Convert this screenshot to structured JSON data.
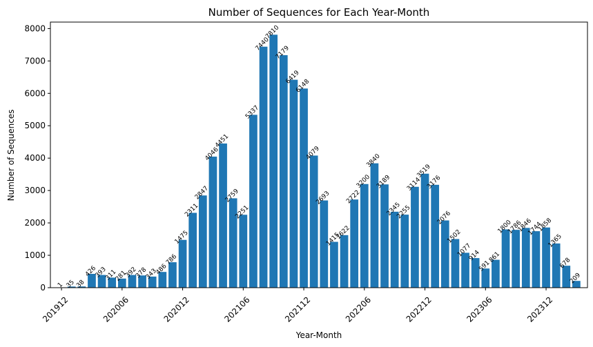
{
  "chart_data": {
    "type": "bar",
    "title": "Number of Sequences for Each Year-Month",
    "xlabel": "Year-Month",
    "ylabel": "Number of Sequences",
    "ylim": [
      0,
      8200
    ],
    "yticks": [
      0,
      1000,
      2000,
      3000,
      4000,
      5000,
      6000,
      7000,
      8000
    ],
    "xtick_labels": [
      "201912",
      "202006",
      "202012",
      "202106",
      "202112",
      "202206",
      "202212",
      "202306",
      "202312"
    ],
    "xtick_positions": [
      0,
      6,
      12,
      18,
      24,
      30,
      36,
      42,
      48
    ],
    "bar_color": "#1f77b4",
    "grid": false,
    "categories": [
      "201912",
      "202001",
      "202002",
      "202003",
      "202004",
      "202005",
      "202006",
      "202007",
      "202008",
      "202009",
      "202010",
      "202011",
      "202012",
      "202101",
      "202102",
      "202103",
      "202104",
      "202105",
      "202106",
      "202107",
      "202108",
      "202109",
      "202110",
      "202111",
      "202112",
      "202201",
      "202202",
      "202203",
      "202204",
      "202205",
      "202206",
      "202207",
      "202208",
      "202209",
      "202210",
      "202211",
      "202212",
      "202301",
      "202302",
      "202303",
      "202304",
      "202305",
      "202306",
      "202307",
      "202308",
      "202309",
      "202310",
      "202311",
      "202312",
      "202401",
      "202402",
      "202403"
    ],
    "values": [
      1,
      35,
      38,
      426,
      393,
      311,
      281,
      392,
      378,
      343,
      486,
      786,
      1475,
      2311,
      2847,
      4046,
      4451,
      2759,
      2251,
      5337,
      7440,
      7810,
      7179,
      6419,
      6148,
      4079,
      2693,
      1415,
      1622,
      2722,
      3200,
      3840,
      3189,
      2345,
      2255,
      3114,
      3519,
      3176,
      2076,
      1502,
      1077,
      914,
      591,
      861,
      1800,
      1786,
      1846,
      1744,
      1858,
      1365,
      678,
      209
    ],
    "data_labels": [
      "1",
      "35",
      "38",
      "426",
      "393",
      "311",
      "281",
      "392",
      "378",
      "343",
      "486",
      "786",
      "1475",
      "2311",
      "2847",
      "4046",
      "4451",
      "2759",
      "2251",
      "5337",
      "7440",
      "7810",
      "7179",
      "6419",
      "6148",
      "4079",
      "2693",
      "1415",
      "1622",
      "2722",
      "3200",
      "3840",
      "3189",
      "2345",
      "2255",
      "3114",
      "3519",
      "3176",
      "2076",
      "1502",
      "1077",
      "914",
      "591",
      "861",
      "1800",
      "1786",
      "1846",
      "1744",
      "1858",
      "1365",
      "678",
      "209"
    ]
  }
}
